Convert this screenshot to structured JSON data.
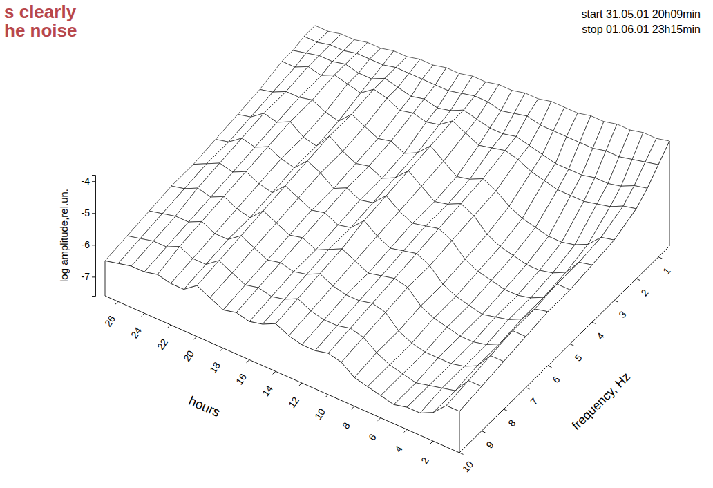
{
  "chart_data": {
    "type": "surface",
    "title": [
      "s clearly",
      "he noise"
    ],
    "annotations": [
      "start 31.05.01 20h09min",
      "stop 01.06.01 23h15min"
    ],
    "xlabel": "hours",
    "ylabel": "frequency, Hz",
    "zlabel": "log amplitude,rel.un.",
    "x": [
      0,
      1,
      2,
      3,
      4,
      5,
      6,
      7,
      8,
      9,
      10,
      11,
      12,
      13,
      14,
      15,
      16,
      17,
      18,
      19,
      20,
      21,
      22,
      23,
      24,
      25,
      26,
      27
    ],
    "y": [
      0.5,
      1,
      1.5,
      2,
      3,
      4,
      5,
      6,
      7,
      8,
      9,
      10
    ],
    "values": [
      [
        -4.3,
        -4.7,
        -5.1,
        -5.4,
        -5.7,
        -5.8,
        -5.9,
        -5.9,
        -6.0,
        -6.1,
        -6.2,
        -6.3
      ],
      [
        -4.4,
        -4.8,
        -5.2,
        -5.5,
        -5.8,
        -5.9,
        -5.9,
        -6.0,
        -6.0,
        -6.1,
        -6.2,
        -6.3
      ],
      [
        -4.4,
        -4.9,
        -5.4,
        -5.7,
        -6.2,
        -6.4,
        -6.5,
        -6.5,
        -6.6,
        -6.6,
        -6.7,
        -6.7
      ],
      [
        -4.5,
        -5.0,
        -5.5,
        -5.8,
        -6.4,
        -6.6,
        -6.7,
        -6.7,
        -6.8,
        -6.8,
        -6.8,
        -6.9
      ],
      [
        -4.5,
        -5.0,
        -5.5,
        -5.9,
        -6.5,
        -6.7,
        -6.8,
        -6.8,
        -6.9,
        -6.9,
        -6.9,
        -6.9
      ],
      [
        -4.6,
        -5.1,
        -5.6,
        -5.9,
        -6.5,
        -6.7,
        -6.8,
        -6.9,
        -6.9,
        -6.9,
        -7.0,
        -7.0
      ],
      [
        -4.6,
        -5.1,
        -5.6,
        -5.9,
        -6.4,
        -6.6,
        -6.7,
        -6.8,
        -6.8,
        -6.9,
        -6.9,
        -6.9
      ],
      [
        -4.7,
        -5.1,
        -5.6,
        -5.8,
        -6.3,
        -6.5,
        -6.6,
        -6.7,
        -6.7,
        -6.8,
        -6.8,
        -6.8
      ],
      [
        -4.7,
        -5.1,
        -5.5,
        -5.7,
        -6.1,
        -6.3,
        -6.4,
        -6.5,
        -6.5,
        -6.6,
        -6.6,
        -6.7
      ],
      [
        -4.7,
        -5.1,
        -5.4,
        -5.5,
        -5.8,
        -5.9,
        -6.0,
        -6.1,
        -6.1,
        -6.2,
        -6.3,
        -6.4
      ],
      [
        -4.8,
        -5.0,
        -5.3,
        -5.4,
        -5.6,
        -5.7,
        -5.8,
        -5.9,
        -6.0,
        -6.1,
        -6.2,
        -6.3
      ],
      [
        -4.8,
        -5.1,
        -5.4,
        -5.5,
        -5.8,
        -5.9,
        -5.9,
        -6.0,
        -6.1,
        -6.2,
        -6.3,
        -6.4
      ],
      [
        -4.9,
        -5.2,
        -5.4,
        -5.6,
        -5.9,
        -6.0,
        -6.0,
        -6.1,
        -6.2,
        -6.2,
        -6.3,
        -6.4
      ],
      [
        -4.9,
        -5.1,
        -5.3,
        -5.4,
        -5.6,
        -5.7,
        -5.8,
        -5.9,
        -6.0,
        -6.1,
        -6.2,
        -6.3
      ],
      [
        -5.0,
        -5.1,
        -5.2,
        -5.2,
        -5.3,
        -5.4,
        -5.5,
        -5.6,
        -5.8,
        -5.9,
        -6.0,
        -6.1
      ],
      [
        -5.0,
        -5.2,
        -5.4,
        -5.5,
        -5.7,
        -5.8,
        -5.9,
        -6.0,
        -6.0,
        -6.1,
        -6.2,
        -6.3
      ],
      [
        -5.1,
        -5.3,
        -5.5,
        -5.6,
        -5.9,
        -6.0,
        -6.0,
        -6.1,
        -6.2,
        -6.2,
        -6.3,
        -6.4
      ],
      [
        -5.1,
        -5.3,
        -5.4,
        -5.5,
        -5.7,
        -5.8,
        -5.8,
        -5.9,
        -6.0,
        -6.1,
        -6.2,
        -6.3
      ],
      [
        -5.2,
        -5.3,
        -5.5,
        -5.6,
        -5.8,
        -5.9,
        -6.0,
        -6.0,
        -6.1,
        -6.2,
        -6.3,
        -6.4
      ],
      [
        -5.2,
        -5.3,
        -5.4,
        -5.4,
        -5.6,
        -5.7,
        -5.7,
        -5.8,
        -5.9,
        -6.0,
        -6.1,
        -6.2
      ],
      [
        -5.3,
        -5.3,
        -5.3,
        -5.3,
        -5.4,
        -5.4,
        -5.5,
        -5.6,
        -5.7,
        -5.8,
        -5.9,
        -6.0
      ],
      [
        -5.3,
        -5.4,
        -5.5,
        -5.6,
        -5.8,
        -5.9,
        -5.9,
        -6.0,
        -6.1,
        -6.1,
        -6.2,
        -6.3
      ],
      [
        -5.4,
        -5.4,
        -5.5,
        -5.5,
        -5.7,
        -5.8,
        -5.8,
        -5.9,
        -6.0,
        -6.1,
        -6.2,
        -6.3
      ],
      [
        -5.4,
        -5.4,
        -5.4,
        -5.4,
        -5.5,
        -5.5,
        -5.6,
        -5.7,
        -5.8,
        -5.9,
        -6.0,
        -6.2
      ],
      [
        -5.5,
        -5.5,
        -5.5,
        -5.6,
        -5.6,
        -5.7,
        -5.8,
        -5.9,
        -6.0,
        -6.1,
        -6.2,
        -6.3
      ],
      [
        -5.5,
        -5.5,
        -5.5,
        -5.5,
        -5.6,
        -5.6,
        -5.7,
        -5.8,
        -5.9,
        -6.1,
        -6.2,
        -6.3
      ],
      [
        -5.6,
        -5.6,
        -5.6,
        -5.7,
        -5.8,
        -5.9,
        -6.0,
        -6.0,
        -6.1,
        -6.2,
        -6.3,
        -6.4
      ],
      [
        -5.6,
        -5.6,
        -5.7,
        -5.7,
        -5.9,
        -6.0,
        -6.1,
        -6.2,
        -6.2,
        -6.3,
        -6.4,
        -6.5
      ]
    ],
    "xlim": [
      0,
      27
    ],
    "xticks": [
      2,
      4,
      6,
      8,
      10,
      12,
      14,
      16,
      18,
      20,
      22,
      24,
      26
    ],
    "ylim": [
      0.5,
      10
    ],
    "yticks": [
      1,
      2,
      3,
      4,
      5,
      6,
      7,
      8,
      9,
      10
    ],
    "zlim": [
      -7.6,
      -3.8
    ],
    "zticks": [
      -4,
      -5,
      -6,
      -7
    ]
  }
}
